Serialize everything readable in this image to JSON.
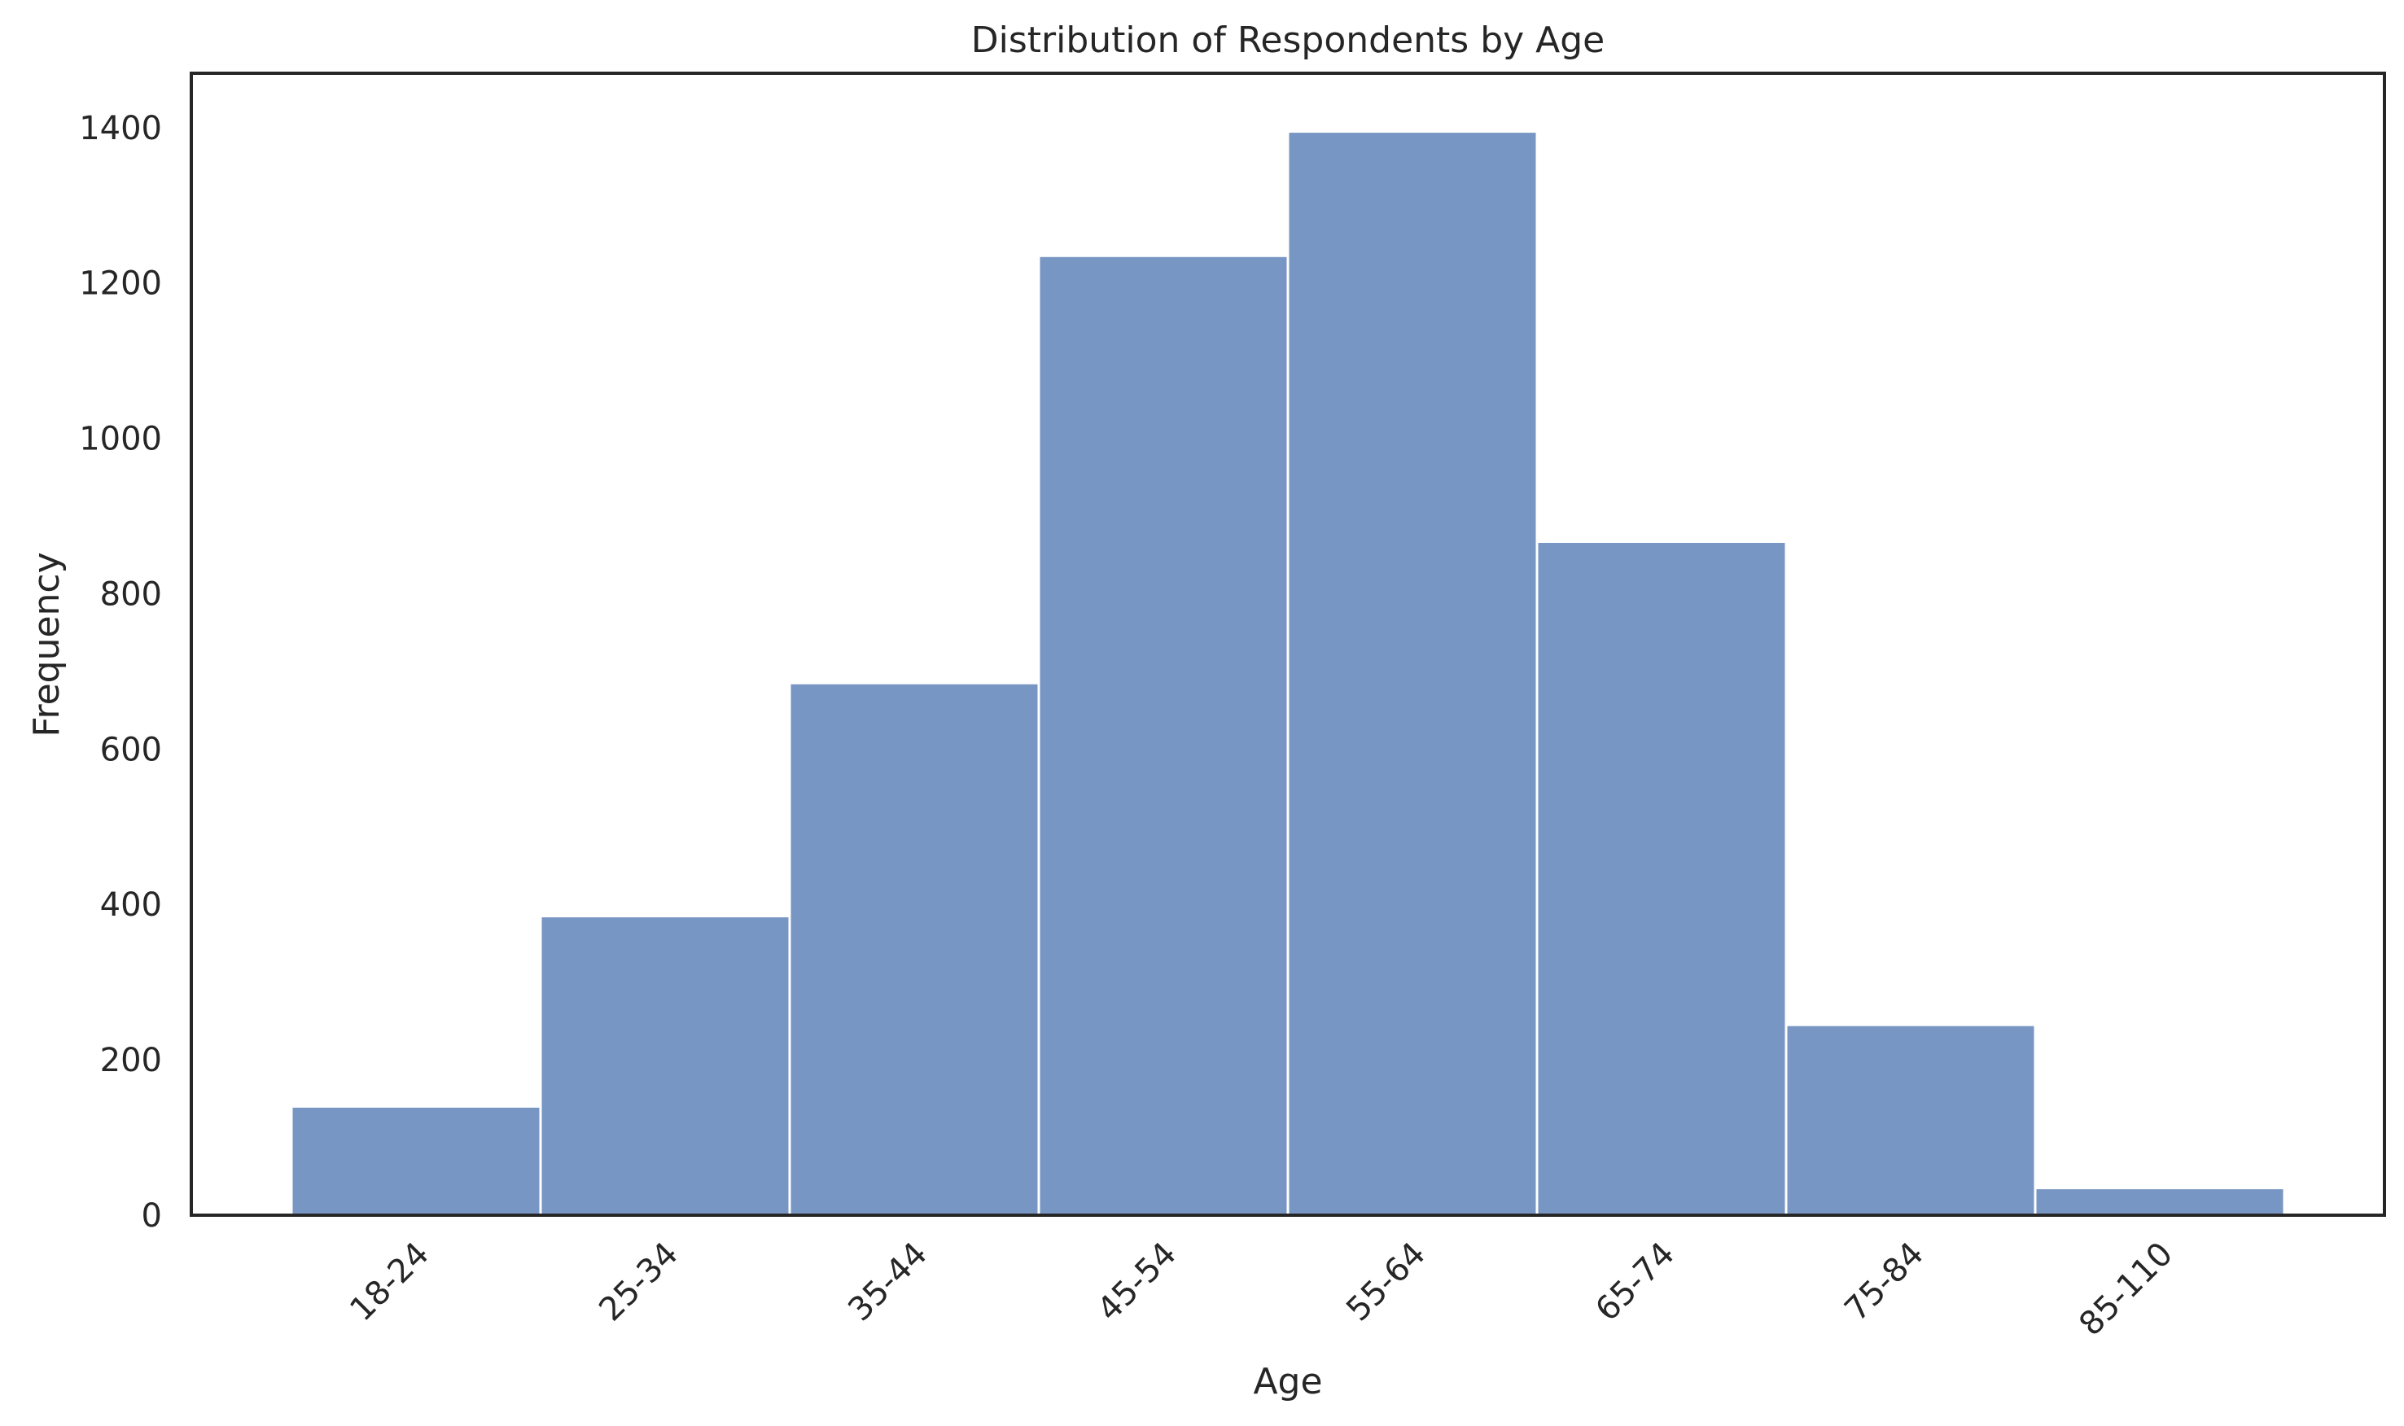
{
  "chart_data": {
    "type": "bar",
    "title": "Distribution of Respondents by Age",
    "xlabel": "Age",
    "ylabel": "Frequency",
    "categories": [
      "18-24",
      "25-34",
      "35-44",
      "45-54",
      "55-64",
      "65-74",
      "75-84",
      "85-110"
    ],
    "values": [
      140,
      385,
      685,
      1235,
      1395,
      867,
      245,
      35
    ],
    "ylim": [
      0,
      1470
    ],
    "yticks": [
      0,
      200,
      400,
      600,
      800,
      1000,
      1200,
      1400
    ],
    "xtick_rotation": 45,
    "grid": false,
    "legend": "none",
    "colors": {
      "bar": "#7896c3",
      "bar_edge": "#ffffff",
      "axis": "#262626",
      "text": "#262626",
      "background": "#ffffff"
    }
  }
}
